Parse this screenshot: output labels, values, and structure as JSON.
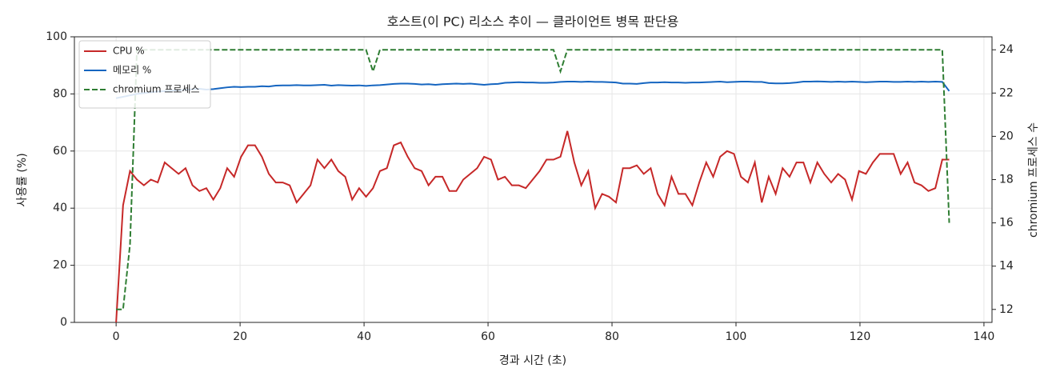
{
  "chart_data": {
    "type": "line",
    "title": "호스트(이 PC) 리소스 추이 — 클라이언트 병목 판단용",
    "x_label": "경과 시간 (초)",
    "y_label": "사용률 (%)",
    "y2_label": "chromium 프로세스 수",
    "x": [
      0,
      1.12,
      2.24,
      3.36,
      4.48,
      5.6,
      6.72,
      7.84,
      8.96,
      10.08,
      11.2,
      12.32,
      13.44,
      14.56,
      15.68,
      16.8,
      17.92,
      19.04,
      20.16,
      21.28,
      22.4,
      23.52,
      24.64,
      25.76,
      26.88,
      28,
      29.12,
      30.24,
      31.36,
      32.48,
      33.6,
      34.72,
      35.84,
      36.96,
      38.08,
      39.2,
      40.32,
      41.44,
      42.56,
      43.68,
      44.8,
      45.92,
      47.04,
      48.16,
      49.28,
      50.4,
      51.52,
      52.64,
      53.76,
      54.88,
      56,
      57.12,
      58.24,
      59.36,
      60.48,
      61.6,
      62.72,
      63.84,
      64.96,
      66.08,
      67.2,
      68.32,
      69.44,
      70.56,
      71.68,
      72.8,
      73.92,
      75.04,
      76.16,
      77.28,
      78.4,
      79.52,
      80.64,
      81.76,
      82.88,
      84,
      85.12,
      86.24,
      87.36,
      88.48,
      89.6,
      90.72,
      91.84,
      92.96,
      94.08,
      95.2,
      96.32,
      97.44,
      98.56,
      99.68,
      100.8,
      101.92,
      103.04,
      104.16,
      105.28,
      106.4,
      107.52,
      108.64,
      109.76,
      110.88,
      112,
      113.12,
      114.24,
      115.36,
      116.48,
      117.6,
      118.72,
      119.84,
      120.96,
      122.08,
      123.2,
      124.32,
      125.44,
      126.56,
      127.68,
      128.8,
      129.92,
      131.04,
      132.16,
      133.28,
      134.4
    ],
    "series": [
      {
        "name": "CPU %",
        "color": "#c62828",
        "dash": false,
        "axis": "y",
        "values": [
          0,
          41,
          53,
          50,
          48,
          50,
          49,
          56,
          54,
          52,
          54,
          48,
          46,
          47,
          43,
          47,
          54,
          51,
          58,
          62,
          62,
          58,
          52,
          49,
          49,
          48,
          42,
          45,
          48,
          57,
          54,
          57,
          53,
          51,
          43,
          47,
          44,
          47,
          53,
          54,
          62,
          63,
          58,
          54,
          53,
          48,
          51,
          51,
          46,
          46,
          50,
          52,
          54,
          58,
          57,
          50,
          51,
          48,
          48,
          47,
          50,
          53,
          57,
          57,
          58,
          67,
          56,
          48,
          53,
          40,
          45,
          44,
          42,
          54,
          54,
          55,
          52,
          54,
          45,
          41,
          51,
          45,
          45,
          41,
          49,
          56,
          51,
          58,
          60,
          59,
          51,
          49,
          56,
          42,
          51,
          45,
          54,
          51,
          56,
          56,
          49,
          56,
          52,
          49,
          52,
          50,
          43,
          53,
          52,
          56,
          59,
          59,
          59,
          52,
          56,
          49,
          48,
          46,
          47,
          57,
          57
        ]
      },
      {
        "name": "메모리 %",
        "color": "#1565c0",
        "dash": false,
        "axis": "y",
        "values": [
          78.5,
          79,
          79.5,
          80,
          80.3,
          80.6,
          80.8,
          81,
          81.2,
          81.3,
          81.5,
          81.6,
          81.8,
          81.5,
          81.7,
          82,
          82.3,
          82.5,
          82.4,
          82.5,
          82.5,
          82.7,
          82.6,
          82.9,
          83,
          83,
          83.1,
          83,
          83,
          83.1,
          83.2,
          82.9,
          83.1,
          83,
          82.9,
          83,
          82.8,
          83,
          83.1,
          83.3,
          83.5,
          83.6,
          83.6,
          83.5,
          83.3,
          83.4,
          83.2,
          83.4,
          83.5,
          83.6,
          83.5,
          83.6,
          83.4,
          83.2,
          83.4,
          83.5,
          83.9,
          84,
          84.1,
          84,
          84,
          83.9,
          83.9,
          84,
          84.2,
          84.3,
          84.3,
          84.2,
          84.3,
          84.2,
          84.2,
          84.1,
          84,
          83.6,
          83.6,
          83.5,
          83.8,
          84,
          84,
          84.1,
          84,
          84,
          83.9,
          84,
          84,
          84.1,
          84.2,
          84.3,
          84.1,
          84.2,
          84.3,
          84.3,
          84.2,
          84.2,
          83.8,
          83.7,
          83.7,
          83.8,
          84,
          84.3,
          84.3,
          84.4,
          84.3,
          84.2,
          84.3,
          84.2,
          84.3,
          84.2,
          84.1,
          84.2,
          84.3,
          84.3,
          84.2,
          84.2,
          84.3,
          84.2,
          84.3,
          84.2,
          84.3,
          84.2,
          81
        ]
      },
      {
        "name": "chromium 프로세스",
        "color": "#2e7d32",
        "dash": true,
        "axis": "y2",
        "values": [
          12,
          12,
          15,
          24,
          24,
          24,
          24,
          24,
          24,
          24,
          24,
          24,
          24,
          24,
          24,
          24,
          24,
          24,
          24,
          24,
          24,
          24,
          24,
          24,
          24,
          24,
          24,
          24,
          24,
          24,
          24,
          24,
          24,
          24,
          24,
          24,
          24,
          23,
          24,
          24,
          24,
          24,
          24,
          24,
          24,
          24,
          24,
          24,
          24,
          24,
          24,
          24,
          24,
          24,
          24,
          24,
          24,
          24,
          24,
          24,
          24,
          24,
          24,
          24,
          23,
          24,
          24,
          24,
          24,
          24,
          24,
          24,
          24,
          24,
          24,
          24,
          24,
          24,
          24,
          24,
          24,
          24,
          24,
          24,
          24,
          24,
          24,
          24,
          24,
          24,
          24,
          24,
          24,
          24,
          24,
          24,
          24,
          24,
          24,
          24,
          24,
          24,
          24,
          24,
          24,
          24,
          24,
          24,
          24,
          24,
          24,
          24,
          24,
          24,
          24,
          24,
          24,
          24,
          24,
          24,
          16
        ]
      }
    ],
    "xlim": [
      -6.73,
      141.3
    ],
    "xticks": [
      0,
      20,
      40,
      60,
      80,
      100,
      120,
      140
    ],
    "ylim": [
      0,
      100
    ],
    "yticks": [
      0,
      20,
      40,
      60,
      80,
      100
    ],
    "y2lim": [
      11.4,
      24.6
    ],
    "y2ticks": [
      12,
      14,
      16,
      18,
      20,
      22,
      24
    ],
    "grid": true,
    "legend": "upper left"
  }
}
